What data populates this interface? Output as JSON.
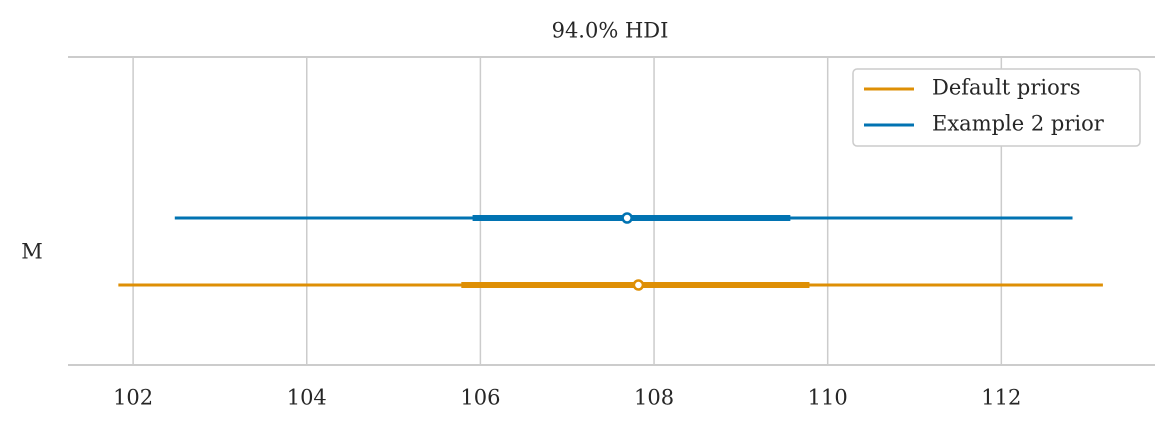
{
  "chart_data": {
    "type": "forest",
    "title": "94.0% HDI",
    "categories": [
      "M"
    ],
    "series": [
      {
        "name": "Default priors",
        "color": "#de8f05",
        "hdi": [
          101.83,
          113.17
        ],
        "quartiles": [
          105.78,
          109.79
        ],
        "point": 107.82
      },
      {
        "name": "Example 2 prior",
        "color": "#0173b2",
        "hdi": [
          102.48,
          112.82
        ],
        "quartiles": [
          105.91,
          109.57
        ],
        "point": 107.69
      }
    ],
    "xlim": [
      101.25,
      113.77
    ],
    "xticks": [
      102,
      104,
      106,
      108,
      110,
      112
    ],
    "grid": true,
    "legend": "upper right"
  }
}
